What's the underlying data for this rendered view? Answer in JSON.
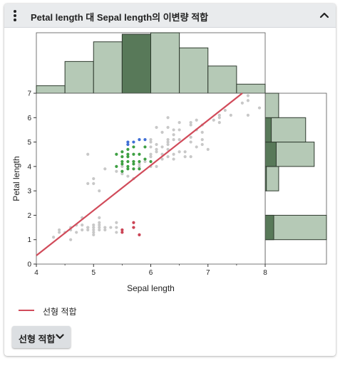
{
  "panel": {
    "title": "Petal length 대 Sepal length의 이변량 적합",
    "menu_icon": "kebab-menu-icon",
    "collapse_icon": "chevron-up-icon"
  },
  "legend": {
    "fit_label": "선형 적합",
    "fit_color": "#d14b5a"
  },
  "fit_button": {
    "label": "선형 적합",
    "icon": "chevron-down-icon"
  },
  "colors": {
    "unselected": "#c8c8c8",
    "green_group": "#3ea043",
    "blue_group": "#3f6fd6",
    "red_group": "#cc4455",
    "fit_line": "#d14b5a",
    "hist_fill": "#b5c9b6",
    "hist_selected": "#587959",
    "hist_stroke": "#2e3a2e"
  },
  "chart_data": {
    "type": "scatter",
    "title": "",
    "xlabel": "Sepal length",
    "ylabel": "Petal length",
    "xlim": [
      4,
      8
    ],
    "ylim": [
      0,
      7
    ],
    "xticks": [
      4,
      5,
      6,
      7,
      8
    ],
    "yticks": [
      0,
      1,
      2,
      3,
      4,
      5,
      6,
      7
    ],
    "grid": false,
    "fit": {
      "type": "linear",
      "x": [
        4,
        7.6
      ],
      "y": [
        0.35,
        7.0
      ]
    },
    "series": [
      {
        "group": "unselected",
        "points": [
          [
            4.3,
            1.1
          ],
          [
            4.4,
            1.3
          ],
          [
            4.4,
            1.4
          ],
          [
            4.5,
            1.3
          ],
          [
            4.6,
            1.4
          ],
          [
            4.6,
            1.5
          ],
          [
            4.6,
            1.0
          ],
          [
            4.7,
            1.3
          ],
          [
            4.7,
            1.6
          ],
          [
            4.8,
            1.4
          ],
          [
            4.8,
            1.6
          ],
          [
            4.8,
            1.9
          ],
          [
            4.9,
            1.4
          ],
          [
            4.9,
            1.5
          ],
          [
            5.0,
            1.2
          ],
          [
            5.0,
            1.3
          ],
          [
            5.0,
            1.4
          ],
          [
            5.0,
            1.5
          ],
          [
            5.0,
            1.6
          ],
          [
            4.9,
            1.5
          ],
          [
            5.1,
            1.4
          ],
          [
            5.1,
            1.5
          ],
          [
            5.1,
            1.6
          ],
          [
            5.1,
            1.7
          ],
          [
            5.1,
            1.9
          ],
          [
            5.2,
            1.4
          ],
          [
            5.2,
            1.5
          ],
          [
            5.3,
            1.5
          ],
          [
            5.4,
            1.3
          ],
          [
            5.4,
            1.5
          ],
          [
            5.4,
            1.7
          ],
          [
            5.5,
            1.3
          ],
          [
            5.5,
            1.4
          ],
          [
            5.7,
            1.5
          ],
          [
            5.8,
            1.2
          ],
          [
            5.1,
            3.0
          ],
          [
            4.9,
            4.5
          ],
          [
            4.9,
            3.3
          ],
          [
            5.0,
            3.5
          ],
          [
            5.0,
            3.3
          ],
          [
            5.2,
            3.9
          ],
          [
            5.4,
            3.8
          ],
          [
            5.5,
            3.7
          ],
          [
            5.5,
            4.0
          ],
          [
            5.6,
            3.6
          ],
          [
            5.6,
            4.9
          ],
          [
            5.7,
            4.2
          ],
          [
            5.7,
            3.5
          ],
          [
            5.8,
            3.9
          ],
          [
            5.8,
            4.0
          ],
          [
            5.8,
            4.1
          ],
          [
            5.9,
            4.2
          ],
          [
            6.0,
            4.0
          ],
          [
            6.0,
            4.4
          ],
          [
            6.0,
            4.5
          ],
          [
            6.0,
            5.0
          ],
          [
            6.0,
            5.1
          ],
          [
            6.1,
            4.0
          ],
          [
            6.1,
            4.6
          ],
          [
            6.1,
            4.7
          ],
          [
            6.1,
            5.6
          ],
          [
            6.2,
            4.3
          ],
          [
            6.2,
            4.5
          ],
          [
            6.2,
            4.8
          ],
          [
            6.3,
            4.4
          ],
          [
            6.3,
            4.7
          ],
          [
            6.3,
            4.9
          ],
          [
            6.3,
            5.1
          ],
          [
            6.3,
            5.6
          ],
          [
            6.3,
            6.0
          ],
          [
            6.4,
            4.3
          ],
          [
            6.4,
            4.5
          ],
          [
            6.4,
            5.3
          ],
          [
            6.4,
            5.5
          ],
          [
            6.5,
            4.6
          ],
          [
            6.5,
            5.1
          ],
          [
            6.5,
            5.8
          ],
          [
            6.6,
            4.4
          ],
          [
            6.6,
            4.6
          ],
          [
            6.7,
            4.4
          ],
          [
            6.7,
            5.0
          ],
          [
            6.7,
            5.2
          ],
          [
            6.7,
            5.7
          ],
          [
            6.7,
            5.8
          ],
          [
            6.8,
            4.8
          ],
          [
            6.8,
            5.5
          ],
          [
            6.8,
            5.9
          ],
          [
            6.9,
            4.9
          ],
          [
            6.9,
            5.1
          ],
          [
            6.9,
            5.4
          ],
          [
            6.9,
            5.7
          ],
          [
            7.0,
            4.7
          ],
          [
            7.1,
            5.9
          ],
          [
            7.2,
            5.8
          ],
          [
            7.2,
            6.0
          ],
          [
            7.2,
            6.1
          ],
          [
            7.3,
            6.3
          ],
          [
            7.4,
            6.1
          ],
          [
            7.7,
            6.7
          ],
          [
            7.7,
            6.9
          ],
          [
            7.7,
            6.1
          ],
          [
            7.6,
            6.6
          ],
          [
            7.9,
            6.4
          ],
          [
            6.5,
            5.5
          ],
          [
            6.1,
            4.9
          ],
          [
            6.3,
            5.0
          ],
          [
            6.4,
            5.1
          ],
          [
            6.2,
            5.4
          ],
          [
            5.9,
            4.8
          ],
          [
            6.0,
            4.8
          ]
        ]
      },
      {
        "group": "green_group",
        "points": [
          [
            5.5,
            4.1
          ],
          [
            5.6,
            4.0
          ],
          [
            5.7,
            4.1
          ],
          [
            5.6,
            4.2
          ],
          [
            5.5,
            3.8
          ],
          [
            5.6,
            3.9
          ],
          [
            5.7,
            3.9
          ],
          [
            5.8,
            3.9
          ],
          [
            5.5,
            4.4
          ],
          [
            5.6,
            4.4
          ],
          [
            5.7,
            4.5
          ],
          [
            5.8,
            4.5
          ],
          [
            5.4,
            4.5
          ],
          [
            5.5,
            4.6
          ],
          [
            5.9,
            4.3
          ],
          [
            5.8,
            4.2
          ],
          [
            5.6,
            4.7
          ],
          [
            5.7,
            4.8
          ],
          [
            5.9,
            4.8
          ],
          [
            6.0,
            4.2
          ],
          [
            5.4,
            4.0
          ],
          [
            5.7,
            4.2
          ],
          [
            5.6,
            4.5
          ],
          [
            5.5,
            4.2
          ]
        ]
      },
      {
        "group": "blue_group",
        "points": [
          [
            5.6,
            4.9
          ],
          [
            5.7,
            5.0
          ],
          [
            5.8,
            5.1
          ],
          [
            5.9,
            5.1
          ],
          [
            5.6,
            5.0
          ]
        ]
      },
      {
        "group": "red_group",
        "points": [
          [
            5.5,
            1.3
          ],
          [
            5.5,
            1.4
          ],
          [
            5.7,
            1.7
          ],
          [
            5.7,
            1.5
          ],
          [
            5.8,
            1.2
          ]
        ]
      }
    ],
    "top_histogram": {
      "axis": "Sepal length",
      "bin_edges": [
        4.0,
        4.5,
        5.0,
        5.5,
        6.0,
        6.5,
        7.0,
        7.5,
        8.0
      ],
      "counts": [
        5,
        21,
        34,
        39,
        40,
        30,
        18,
        6
      ],
      "selected_bins": [
        3
      ]
    },
    "right_histogram": {
      "axis": "Petal length",
      "bins": [
        {
          "from": 1,
          "to": 2,
          "count": 50,
          "selected": 7
        },
        {
          "from": 3,
          "to": 4,
          "count": 11,
          "selected": 1
        },
        {
          "from": 4,
          "to": 5,
          "count": 40,
          "selected": 9
        },
        {
          "from": 5,
          "to": 6,
          "count": 33,
          "selected": 5
        },
        {
          "from": 6,
          "to": 7,
          "count": 11,
          "selected": 0
        }
      ]
    }
  }
}
